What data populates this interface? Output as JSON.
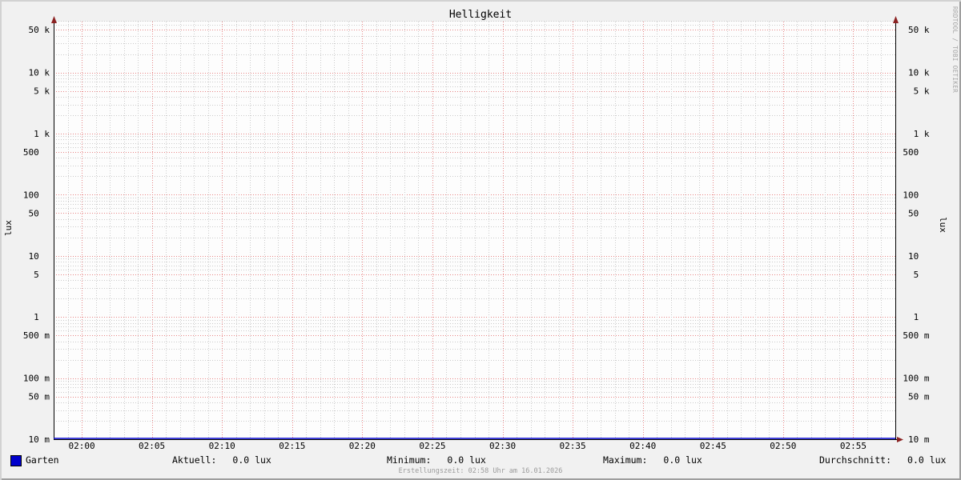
{
  "title": "Helligkeit",
  "watermark": "RRDTOOL / TOBI OETIKER",
  "footer": "Erstellungszeit: 02:58 Uhr am 16.01.2026",
  "colors": {
    "background": "#f1f1f1",
    "canvas": "#fdfdfd",
    "axis": "#000000",
    "arrow": "#8b2222",
    "grid_major": "#e88585",
    "grid_minor": "#cbcbcb",
    "series_garten": "#0000cc",
    "footer_text": "#9b9b9b",
    "watermark_text": "#a5a5a5"
  },
  "chart_data": {
    "type": "line",
    "title": "Helligkeit",
    "ylabel_left": "lux",
    "ylabel_right": "lux",
    "y_scale": "log",
    "ylim": [
      0.01,
      66000
    ],
    "grid": {
      "on": true,
      "style": "dotted",
      "major_color": "#e88585",
      "minor_color": "#cbcbcb"
    },
    "x_range_time": [
      "01:58",
      "02:58"
    ],
    "x_start_min": 118,
    "x_end_min": 178,
    "x_minor_step_min": 1,
    "x_major_step_min": 5,
    "x_first_label_min": 120,
    "x_tick_labels": [
      "02:00",
      "02:05",
      "02:10",
      "02:15",
      "02:20",
      "02:25",
      "02:30",
      "02:35",
      "02:40",
      "02:45",
      "02:50",
      "02:55"
    ],
    "y_major_ticks": [
      {
        "value": 50000,
        "num": "50",
        "unit": "k",
        "label": "50 k"
      },
      {
        "value": 10000,
        "num": "10",
        "unit": "k",
        "label": "10 k"
      },
      {
        "value": 5000,
        "num": "5",
        "unit": "k",
        "label": "5 k"
      },
      {
        "value": 1000,
        "num": "1",
        "unit": "k",
        "label": "1 k"
      },
      {
        "value": 500,
        "num": "500",
        "unit": "",
        "label": "500"
      },
      {
        "value": 100,
        "num": "100",
        "unit": "",
        "label": "100"
      },
      {
        "value": 50,
        "num": "50",
        "unit": "",
        "label": "50"
      },
      {
        "value": 10,
        "num": "10",
        "unit": "",
        "label": "10"
      },
      {
        "value": 5,
        "num": "5",
        "unit": "",
        "label": "5"
      },
      {
        "value": 1,
        "num": "1",
        "unit": "",
        "label": "1"
      },
      {
        "value": 0.5,
        "num": "500",
        "unit": "m",
        "label": "500 m"
      },
      {
        "value": 0.1,
        "num": "100",
        "unit": "m",
        "label": "100 m"
      },
      {
        "value": 0.05,
        "num": "50",
        "unit": "m",
        "label": "50 m"
      },
      {
        "value": 0.01,
        "num": "10",
        "unit": "m",
        "label": "10 m"
      }
    ],
    "series": [
      {
        "name": "Garten",
        "color": "#0000cc",
        "y_constant_lux": 0.0
      }
    ],
    "legend_position": "bottom"
  },
  "legend": {
    "series_label": "Garten",
    "series_color": "#0000cc",
    "stats": [
      {
        "label": "Aktuell:",
        "value": "0.0 lux"
      },
      {
        "label": "Minimum:",
        "value": "0.0 lux"
      },
      {
        "label": "Maximum:",
        "value": "0.0 lux"
      },
      {
        "label": "Durchschnitt:",
        "value": "0.0 lux"
      }
    ]
  }
}
